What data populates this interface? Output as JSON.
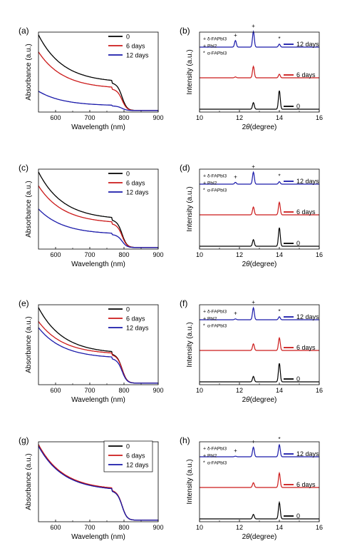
{
  "figure": {
    "absorbance_label": "Absorbance (a.u.)",
    "wavelength_label": "Wavelength (nm)",
    "intensity_label": "Intensity (a.u.)",
    "two_theta_symbol": "2",
    "theta_symbol": "θ",
    "degree_label": "(degree)",
    "abs_ticks": [
      600,
      700,
      800,
      900
    ],
    "xrd_ticks": [
      10,
      12,
      14,
      16
    ],
    "colors": {
      "day0": "#000000",
      "day6": "#cc1a1a",
      "day12": "#1a1aaa",
      "marker_delta": "#c87533",
      "marker_pbi2": "#8b1a1a",
      "marker_alpha": "#222222"
    }
  },
  "chart_data": [
    {
      "panel": "(a)",
      "type": "line",
      "xlabel": "Wavelength (nm)",
      "ylabel": "Absorbance (a.u.)",
      "xlim": [
        550,
        900
      ],
      "legend": [
        "0",
        "6  days",
        "12 days"
      ],
      "series": [
        {
          "name": "0",
          "start": 1.0,
          "edge": 0.38,
          "tail": 0.02
        },
        {
          "name": "6  days",
          "start": 0.78,
          "edge": 0.3,
          "tail": 0.02
        },
        {
          "name": "12 days",
          "start": 0.27,
          "edge": 0.08,
          "tail": 0.02
        }
      ]
    },
    {
      "panel": "(b)",
      "type": "line",
      "xlabel": "2θ(degree)",
      "ylabel": "Intensity (a.u.)",
      "xlim": [
        10,
        16
      ],
      "legend_markers": [
        "δ-FAPbI3",
        "PbI2",
        "α-FAPbI3"
      ],
      "series": [
        {
          "name": "0",
          "peaks": [
            [
              12.7,
              0.22
            ],
            [
              14.0,
              0.62
            ]
          ]
        },
        {
          "name": "6  days",
          "peaks": [
            [
              12.7,
              0.38
            ],
            [
              14.0,
              0.12
            ],
            [
              11.8,
              0.03
            ]
          ]
        },
        {
          "name": "12 days",
          "peaks": [
            [
              11.8,
              0.22
            ],
            [
              12.7,
              0.52
            ],
            [
              14.0,
              0.1
            ]
          ]
        }
      ]
    },
    {
      "panel": "(c)",
      "type": "line",
      "xlabel": "Wavelength (nm)",
      "ylabel": "Absorbance (a.u.)",
      "xlim": [
        550,
        900
      ],
      "legend": [
        "0",
        "6  days",
        "12 days"
      ],
      "series": [
        {
          "name": "0",
          "start": 1.0,
          "edge": 0.38,
          "tail": 0.02
        },
        {
          "name": "6  days",
          "start": 0.82,
          "edge": 0.33,
          "tail": 0.02
        },
        {
          "name": "12 days",
          "start": 0.52,
          "edge": 0.19,
          "tail": 0.02
        }
      ]
    },
    {
      "panel": "(d)",
      "type": "line",
      "xlabel": "2θ(degree)",
      "ylabel": "Intensity (a.u.)",
      "xlim": [
        10,
        16
      ],
      "legend_markers": [
        "δ-FAPbI3",
        "PbI2",
        "α-FAPbI3"
      ],
      "series": [
        {
          "name": "0",
          "peaks": [
            [
              12.7,
              0.22
            ],
            [
              14.0,
              0.62
            ]
          ]
        },
        {
          "name": "6  days",
          "peaks": [
            [
              12.7,
              0.26
            ],
            [
              14.0,
              0.42
            ]
          ]
        },
        {
          "name": "12 days",
          "peaks": [
            [
              11.8,
              0.06
            ],
            [
              12.7,
              0.4
            ],
            [
              14.0,
              0.08
            ]
          ]
        }
      ]
    },
    {
      "panel": "(e)",
      "type": "line",
      "xlabel": "Wavelength (nm)",
      "ylabel": "Absorbance (a.u.)",
      "xlim": [
        550,
        900
      ],
      "legend": [
        "0",
        "6  days",
        "12 days"
      ],
      "series": [
        {
          "name": "0",
          "start": 1.0,
          "edge": 0.4,
          "tail": 0.02
        },
        {
          "name": "6  days",
          "start": 0.82,
          "edge": 0.39,
          "tail": 0.02
        },
        {
          "name": "12 days",
          "start": 0.74,
          "edge": 0.34,
          "tail": 0.02
        }
      ]
    },
    {
      "panel": "(f)",
      "type": "line",
      "xlabel": "2θ(degree)",
      "ylabel": "Intensity (a.u.)",
      "xlim": [
        10,
        16
      ],
      "legend_markers": [
        "δ-FAPbI3",
        "PbI2",
        "α-FAPbI3"
      ],
      "series": [
        {
          "name": "0",
          "peaks": [
            [
              12.7,
              0.18
            ],
            [
              14.0,
              0.62
            ]
          ]
        },
        {
          "name": "6  days",
          "peaks": [
            [
              12.7,
              0.22
            ],
            [
              14.0,
              0.42
            ]
          ]
        },
        {
          "name": "12 days",
          "peaks": [
            [
              11.8,
              0.03
            ],
            [
              12.7,
              0.4
            ],
            [
              14.0,
              0.1
            ]
          ]
        }
      ]
    },
    {
      "panel": "(g)",
      "type": "line",
      "xlabel": "Wavelength (nm)",
      "ylabel": "Absorbance (a.u.)",
      "xlim": [
        550,
        900
      ],
      "legend": [
        "0",
        "6  days",
        "12 days"
      ],
      "series": [
        {
          "name": "0",
          "start": 1.0,
          "edge": 0.4,
          "tail": 0.02
        },
        {
          "name": "6  days",
          "start": 1.0,
          "edge": 0.41,
          "tail": 0.02
        },
        {
          "name": "12 days",
          "start": 0.98,
          "edge": 0.4,
          "tail": 0.02
        }
      ]
    },
    {
      "panel": "(h)",
      "type": "line",
      "xlabel": "2θ(degree)",
      "ylabel": "Intensity (a.u.)",
      "xlim": [
        10,
        16
      ],
      "legend_markers": [
        "δ-FAPbI3",
        "PbI2",
        "α-FAPbI3"
      ],
      "series": [
        {
          "name": "0",
          "peaks": [
            [
              12.7,
              0.15
            ],
            [
              14.0,
              0.55
            ]
          ]
        },
        {
          "name": "6  days",
          "peaks": [
            [
              12.7,
              0.16
            ],
            [
              14.0,
              0.48
            ]
          ]
        },
        {
          "name": "12 days",
          "peaks": [
            [
              12.7,
              0.32
            ],
            [
              14.0,
              0.4
            ],
            [
              11.8,
              0.02
            ]
          ]
        }
      ]
    }
  ]
}
